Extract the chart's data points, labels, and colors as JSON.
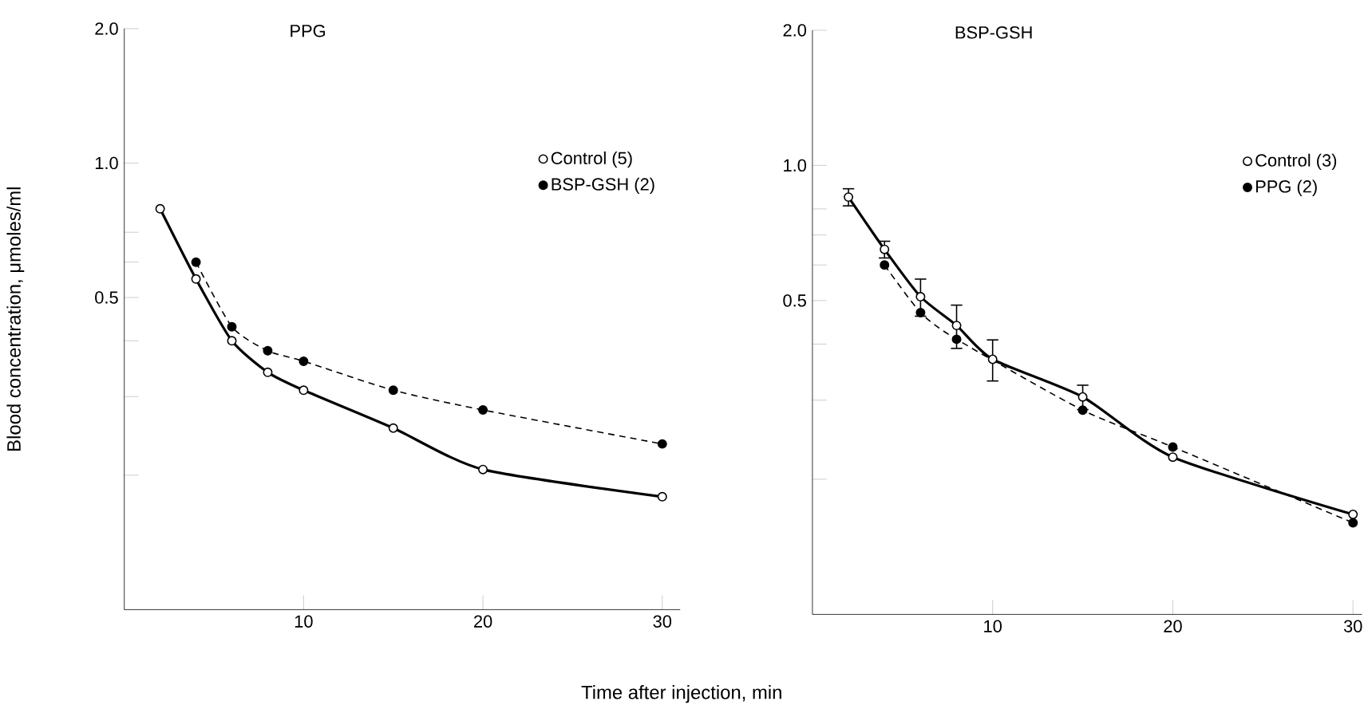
{
  "chart_data": [
    {
      "type": "line",
      "title": "PPG",
      "xlabel": "Time after injection, min",
      "ylabel": "Blood concentration, μmoles/ml",
      "log": "y",
      "legend": "top right",
      "x": [
        2,
        4,
        6,
        8,
        10,
        15,
        20,
        30
      ],
      "xlim": [
        0,
        31
      ],
      "ylim": [
        0.1,
        2.0
      ],
      "xticks": [
        10,
        20,
        30
      ],
      "yticks": [
        {
          "value": 2.0,
          "label": "2.0"
        },
        {
          "value": 1.0,
          "label": "1.0"
        },
        {
          "value": 0.7,
          "label": null
        },
        {
          "value": 0.6,
          "label": null
        },
        {
          "value": 0.5,
          "label": "0.5"
        },
        {
          "value": 0.4,
          "label": null
        },
        {
          "value": 0.3,
          "label": null
        },
        {
          "value": 0.2,
          "label": null
        }
      ],
      "series": [
        {
          "name": "Control (5)",
          "color": "#000000",
          "marker": "circle",
          "line_style": "solid",
          "values": [
            0.79,
            0.55,
            0.4,
            0.34,
            0.31,
            0.255,
            0.206,
            0.179
          ]
        },
        {
          "name": "BSP-GSH (2)",
          "color": "#000000",
          "marker": "circle",
          "line_style": "dashed",
          "values": [
            null,
            0.6,
            0.43,
            0.38,
            0.36,
            0.31,
            0.28,
            0.235
          ]
        }
      ]
    },
    {
      "type": "line",
      "title": "BSP-GSH",
      "log": "y",
      "legend": "top right",
      "x": [
        2,
        4,
        6,
        8,
        10,
        15,
        20,
        30
      ],
      "xlim": [
        0,
        30.5
      ],
      "ylim": [
        0.1,
        2.0
      ],
      "xticks": [
        10,
        20,
        30
      ],
      "yticks": [
        {
          "value": 2.0,
          "label": "2.0"
        },
        {
          "value": 1.0,
          "label": "1.0"
        },
        {
          "value": 0.8,
          "label": null
        },
        {
          "value": 0.7,
          "label": null
        },
        {
          "value": 0.6,
          "label": null
        },
        {
          "value": 0.5,
          "label": "0.5"
        },
        {
          "value": 0.4,
          "label": null
        },
        {
          "value": 0.3,
          "label": null
        },
        {
          "value": 0.2,
          "label": null
        }
      ],
      "series": [
        {
          "name": "Control (3)",
          "color": "#000000",
          "marker": "circle",
          "line_style": "solid",
          "values": [
            0.85,
            0.65,
            0.51,
            0.44,
            0.37,
            0.305,
            0.224,
            0.167
          ],
          "errors": [
            0.04,
            0.03,
            0.05,
            0.05,
            0.04,
            0.02,
            null,
            null
          ]
        },
        {
          "name": "PPG (2)",
          "color": "#000000",
          "marker": "circle",
          "line_style": "dashed",
          "values": [
            null,
            0.6,
            0.47,
            0.41,
            null,
            0.285,
            0.236,
            0.16
          ]
        }
      ]
    }
  ]
}
